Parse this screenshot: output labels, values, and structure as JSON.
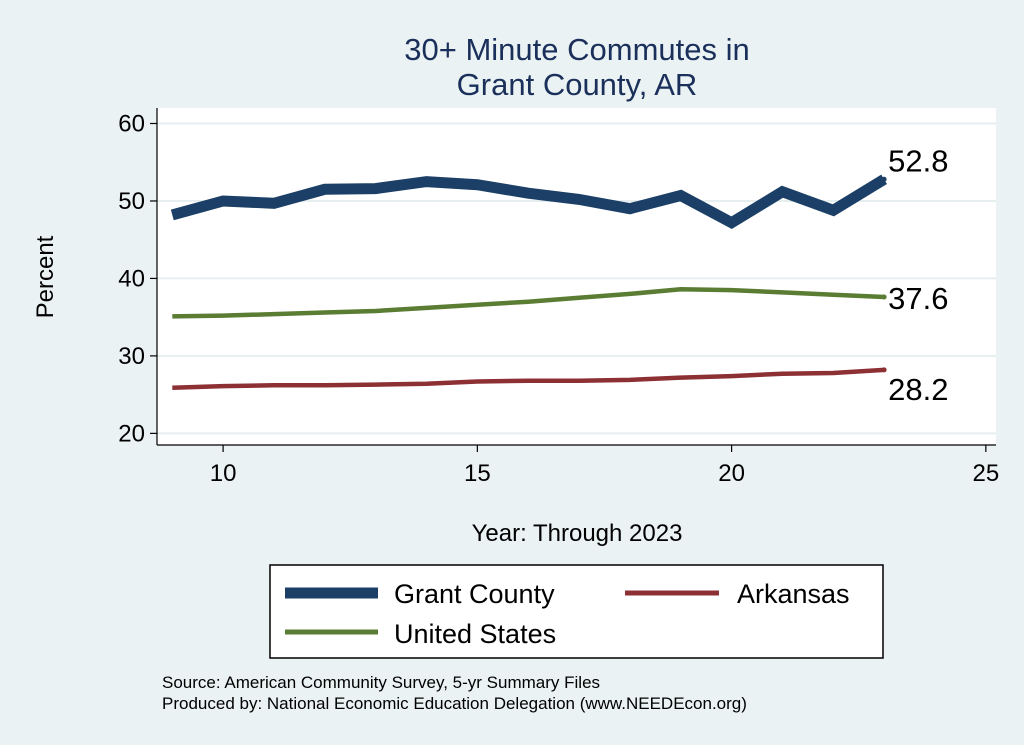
{
  "chart_data": {
    "type": "line",
    "title_lines": [
      "30+ Minute Commutes in",
      "Grant County, AR"
    ],
    "xlabel": "Year: Through 2023",
    "ylabel": "Percent",
    "xlim": [
      8.7,
      25.2
    ],
    "ylim": [
      18.5,
      62
    ],
    "xticks": [
      10,
      15,
      20,
      25
    ],
    "yticks": [
      20,
      30,
      40,
      50,
      60
    ],
    "grid": true,
    "x": [
      9,
      10,
      11,
      12,
      13,
      14,
      15,
      16,
      17,
      18,
      19,
      20,
      21,
      22,
      23
    ],
    "series": [
      {
        "name": "Grant County",
        "color": "#1b3f66",
        "values": [
          48.2,
          50.0,
          49.7,
          51.5,
          51.6,
          52.5,
          52.1,
          51.0,
          50.2,
          49.0,
          50.7,
          47.2,
          51.2,
          48.8,
          52.8
        ],
        "end_label": "52.8"
      },
      {
        "name": "United States",
        "color": "#5a7d33",
        "values": [
          35.1,
          35.2,
          35.4,
          35.6,
          35.8,
          36.2,
          36.6,
          37.0,
          37.5,
          38.0,
          38.6,
          38.5,
          38.2,
          37.9,
          37.6
        ],
        "end_label": "37.6"
      },
      {
        "name": "Arkansas",
        "color": "#8c3034",
        "values": [
          25.9,
          26.1,
          26.2,
          26.2,
          26.3,
          26.4,
          26.7,
          26.8,
          26.8,
          26.9,
          27.2,
          27.4,
          27.7,
          27.8,
          28.2
        ],
        "end_label": "28.2"
      }
    ],
    "legend": [
      "Grant County",
      "Arkansas",
      "United States"
    ],
    "legend_position": "bottom"
  },
  "source": "Source: American Community Survey, 5-yr Summary Files",
  "producer": "Produced by: National Economic Education Delegation (www.NEEDEcon.org)"
}
